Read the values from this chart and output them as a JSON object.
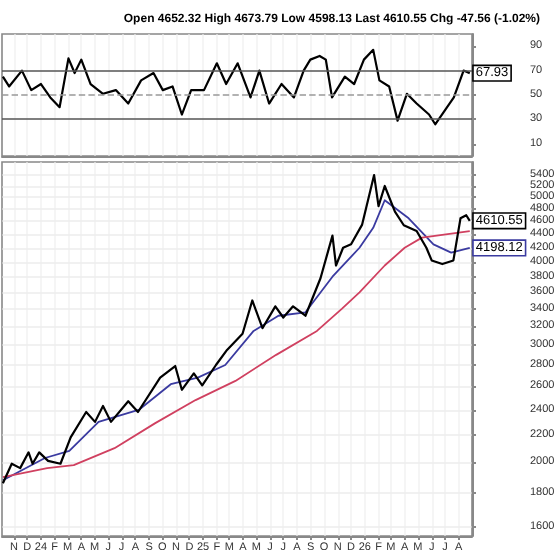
{
  "chart_data": [
    {
      "type": "line",
      "annotations": [
        "Open 4652.32 High 4673.79 Low 4598.13 Last 4610.55 Chg -47.56 (-1.02%)"
      ],
      "xlim": [
        "2023-10-05",
        "2026-08-31"
      ],
      "ylim": [
        0,
        100
      ],
      "yticks": [
        10,
        30,
        50,
        70,
        90
      ],
      "xticks": [
        {
          "value": "2023-11-01",
          "label": null
        },
        {
          "value": "2023-12-01",
          "label": null
        },
        {
          "value": "2024-01-01",
          "label": null
        },
        {
          "value": "2024-02-01",
          "label": null
        },
        {
          "value": "2024-03-01",
          "label": null
        },
        {
          "value": "2024-04-01",
          "label": null
        },
        {
          "value": "2024-05-01",
          "label": null
        },
        {
          "value": "2024-06-01",
          "label": null
        },
        {
          "value": "2024-07-01",
          "label": null
        },
        {
          "value": "2024-08-01",
          "label": null
        },
        {
          "value": "2024-09-01",
          "label": null
        },
        {
          "value": "2024-10-01",
          "label": null
        },
        {
          "value": "2024-11-01",
          "label": null
        },
        {
          "value": "2024-12-01",
          "label": null
        },
        {
          "value": "2025-01-01",
          "label": null
        },
        {
          "value": "2025-02-01",
          "label": null
        },
        {
          "value": "2025-03-01",
          "label": null
        },
        {
          "value": "2025-04-01",
          "label": null
        },
        {
          "value": "2025-05-01",
          "label": null
        },
        {
          "value": "2025-06-01",
          "label": null
        },
        {
          "value": "2025-07-01",
          "label": null
        },
        {
          "value": "2025-08-01",
          "label": null
        },
        {
          "value": "2025-09-01",
          "label": null
        },
        {
          "value": "2025-10-01",
          "label": null
        },
        {
          "value": "2025-11-01",
          "label": null
        },
        {
          "value": "2025-12-01",
          "label": null
        },
        {
          "value": "2026-01-01",
          "label": null
        },
        {
          "value": "2026-02-01",
          "label": null
        },
        {
          "value": "2026-03-01",
          "label": null
        },
        {
          "value": "2026-04-01",
          "label": null
        },
        {
          "value": "2026-05-01",
          "label": null
        },
        {
          "value": "2026-06-01",
          "label": null
        },
        {
          "value": "2026-07-01",
          "label": null
        },
        {
          "value": "2026-08-01",
          "label": null
        }
      ],
      "tick_labels": "y",
      "grid": "x",
      "ref_lines": [
        {
          "axis": "y",
          "value": 70,
          "color": "#555555",
          "line_style": "solid"
        },
        {
          "axis": "y",
          "value": 30,
          "color": "#555555",
          "line_style": "solid"
        },
        {
          "axis": "y",
          "value": 50,
          "color": "#999999",
          "line_style": "dashed"
        }
      ],
      "series": [
        {
          "color": "#000000",
          "x": [
            "2023-10-07",
            "2023-10-21",
            "2023-11-19",
            "2023-12-10",
            "2024-01-01",
            "2024-01-22",
            "2024-02-12",
            "2024-03-03",
            "2024-03-17",
            "2024-04-01",
            "2024-04-22",
            "2024-05-20",
            "2024-06-18",
            "2024-07-16",
            "2024-08-14",
            "2024-09-11",
            "2024-10-02",
            "2024-10-24",
            "2024-11-14",
            "2024-12-05",
            "2025-01-03",
            "2025-02-01",
            "2025-02-22",
            "2025-03-20",
            "2025-04-18",
            "2025-05-08",
            "2025-05-30",
            "2025-06-27",
            "2025-07-25",
            "2025-08-16",
            "2025-08-31",
            "2025-09-21",
            "2025-10-05",
            "2025-10-19",
            "2025-11-17",
            "2025-12-08",
            "2025-12-30",
            "2026-01-20",
            "2026-02-03",
            "2026-02-25",
            "2026-03-16",
            "2026-04-06",
            "2026-04-28",
            "2026-05-26",
            "2026-06-09",
            "2026-06-30",
            "2026-07-21",
            "2026-08-12",
            "2026-08-26"
          ],
          "values": [
            65,
            57,
            70,
            54,
            59,
            48,
            40,
            80,
            68,
            79,
            59,
            51,
            54,
            43,
            62,
            68,
            54,
            57,
            34,
            54,
            54,
            76,
            59,
            76,
            48,
            70,
            43,
            59,
            48,
            70,
            79,
            82,
            79,
            48,
            65,
            59,
            79,
            87,
            62,
            57,
            29,
            51,
            43,
            34,
            26,
            37,
            48,
            70,
            67.93
          ],
          "value_labels": [
            null,
            null,
            null,
            null,
            null,
            null,
            null,
            null,
            null,
            null,
            null,
            null,
            null,
            null,
            null,
            null,
            null,
            null,
            null,
            null,
            null,
            null,
            null,
            null,
            null,
            null,
            null,
            null,
            null,
            null,
            null,
            null,
            null,
            null,
            null,
            null,
            null,
            null,
            null,
            null,
            null,
            null,
            null,
            null,
            null,
            null,
            null,
            null,
            "67.93"
          ]
        }
      ]
    },
    {
      "type": "line",
      "log": "y",
      "xlim": [
        "2023-10-05",
        "2026-08-31"
      ],
      "ylim": [
        1550,
        5650
      ],
      "yticks": [
        1600,
        1800,
        2000,
        2200,
        2400,
        2600,
        2800,
        3000,
        3200,
        3400,
        3600,
        3800,
        4000,
        4200,
        4400,
        4600,
        4800,
        5000,
        5200,
        5400
      ],
      "xticks": [
        {
          "value": "2023-11-01",
          "label": "N"
        },
        {
          "value": "2023-12-01",
          "label": "D"
        },
        {
          "value": "2024-01-01",
          "label": "24"
        },
        {
          "value": "2024-02-01",
          "label": "F"
        },
        {
          "value": "2024-03-01",
          "label": "M"
        },
        {
          "value": "2024-04-01",
          "label": "A"
        },
        {
          "value": "2024-05-01",
          "label": "M"
        },
        {
          "value": "2024-06-01",
          "label": "J"
        },
        {
          "value": "2024-07-01",
          "label": "J"
        },
        {
          "value": "2024-08-01",
          "label": "A"
        },
        {
          "value": "2024-09-01",
          "label": "S"
        },
        {
          "value": "2024-10-01",
          "label": "O"
        },
        {
          "value": "2024-11-01",
          "label": "N"
        },
        {
          "value": "2024-12-01",
          "label": "D"
        },
        {
          "value": "2025-01-01",
          "label": "25"
        },
        {
          "value": "2025-02-01",
          "label": "F"
        },
        {
          "value": "2025-03-01",
          "label": "M"
        },
        {
          "value": "2025-04-01",
          "label": "A"
        },
        {
          "value": "2025-05-01",
          "label": "M"
        },
        {
          "value": "2025-06-01",
          "label": "J"
        },
        {
          "value": "2025-07-01",
          "label": "J"
        },
        {
          "value": "2025-08-01",
          "label": "A"
        },
        {
          "value": "2025-09-01",
          "label": "S"
        },
        {
          "value": "2025-10-01",
          "label": "O"
        },
        {
          "value": "2025-11-01",
          "label": "N"
        },
        {
          "value": "2025-12-01",
          "label": "D"
        },
        {
          "value": "2026-01-01",
          "label": "26"
        },
        {
          "value": "2026-02-01",
          "label": "F"
        },
        {
          "value": "2026-03-01",
          "label": "M"
        },
        {
          "value": "2026-04-01",
          "label": "A"
        },
        {
          "value": "2026-05-01",
          "label": "M"
        },
        {
          "value": "2026-06-01",
          "label": "J"
        },
        {
          "value": "2026-07-01",
          "label": "J"
        },
        {
          "value": "2026-08-01",
          "label": "A"
        }
      ],
      "grid": true,
      "series": [
        {
          "color": "#3a3aa0",
          "x": [
            "2023-10-07",
            "2024-01-10",
            "2024-03-05",
            "2024-05-10",
            "2024-08-10",
            "2024-10-20",
            "2024-12-20",
            "2025-02-20",
            "2025-04-25",
            "2025-06-20",
            "2025-08-20",
            "2025-10-20",
            "2025-12-20",
            "2026-01-20",
            "2026-02-15",
            "2026-04-10",
            "2026-06-05",
            "2026-07-15",
            "2026-08-26"
          ],
          "values": [
            1880,
            2030,
            2080,
            2300,
            2400,
            2620,
            2680,
            2800,
            3150,
            3320,
            3360,
            3800,
            4200,
            4500,
            4950,
            4650,
            4250,
            4130,
            4198.12
          ],
          "value_labels": [
            null,
            null,
            null,
            null,
            null,
            null,
            null,
            null,
            null,
            null,
            null,
            null,
            null,
            null,
            null,
            null,
            null,
            null,
            "4198.12"
          ]
        },
        {
          "color": "#d04060",
          "x": [
            "2023-10-07",
            "2024-01-15",
            "2024-03-15",
            "2024-06-15",
            "2024-09-15",
            "2024-12-15",
            "2025-03-15",
            "2025-06-15",
            "2025-09-15",
            "2025-11-10",
            "2025-12-20",
            "2026-02-15",
            "2026-04-01",
            "2026-05-10",
            "2026-08-26"
          ],
          "values": [
            1900,
            1960,
            1980,
            2100,
            2290,
            2480,
            2650,
            2900,
            3150,
            3400,
            3600,
            3950,
            4200,
            4350,
            4450
          ]
        },
        {
          "color": "#000000",
          "x": [
            "2023-10-07",
            "2023-10-27",
            "2023-11-15",
            "2023-12-04",
            "2023-12-13",
            "2023-12-28",
            "2024-01-17",
            "2024-02-14",
            "2024-03-08",
            "2024-04-12",
            "2024-05-02",
            "2024-05-20",
            "2024-06-07",
            "2024-07-16",
            "2024-08-07",
            "2024-09-26",
            "2024-10-30",
            "2024-11-14",
            "2024-12-11",
            "2024-12-30",
            "2025-01-30",
            "2025-02-24",
            "2025-03-31",
            "2025-04-22",
            "2025-05-15",
            "2025-06-13",
            "2025-07-01",
            "2025-07-23",
            "2025-08-20",
            "2025-09-23",
            "2025-10-20",
            "2025-10-28",
            "2025-11-13",
            "2025-12-01",
            "2025-12-26",
            "2026-01-22",
            "2026-02-01",
            "2026-02-15",
            "2026-03-10",
            "2026-03-30",
            "2026-04-28",
            "2026-05-20",
            "2026-06-01",
            "2026-06-25",
            "2026-07-20",
            "2026-08-05",
            "2026-08-18",
            "2026-08-26"
          ],
          "values": [
            1860,
            1990,
            1960,
            2070,
            1990,
            2070,
            2010,
            1990,
            2180,
            2380,
            2300,
            2430,
            2300,
            2470,
            2380,
            2680,
            2790,
            2570,
            2720,
            2610,
            2800,
            2950,
            3120,
            3500,
            3180,
            3430,
            3300,
            3430,
            3320,
            3780,
            4380,
            3950,
            4200,
            4250,
            4550,
            5400,
            4850,
            5200,
            4760,
            4540,
            4450,
            4200,
            4020,
            3970,
            4020,
            4650,
            4700,
            4610.55
          ],
          "value_labels": [
            null,
            null,
            null,
            null,
            null,
            null,
            null,
            null,
            null,
            null,
            null,
            null,
            null,
            null,
            null,
            null,
            null,
            null,
            null,
            null,
            null,
            null,
            null,
            null,
            null,
            null,
            null,
            null,
            null,
            null,
            null,
            null,
            null,
            null,
            null,
            null,
            null,
            null,
            null,
            null,
            null,
            null,
            null,
            null,
            null,
            null,
            null,
            "4610.55"
          ]
        }
      ]
    }
  ]
}
